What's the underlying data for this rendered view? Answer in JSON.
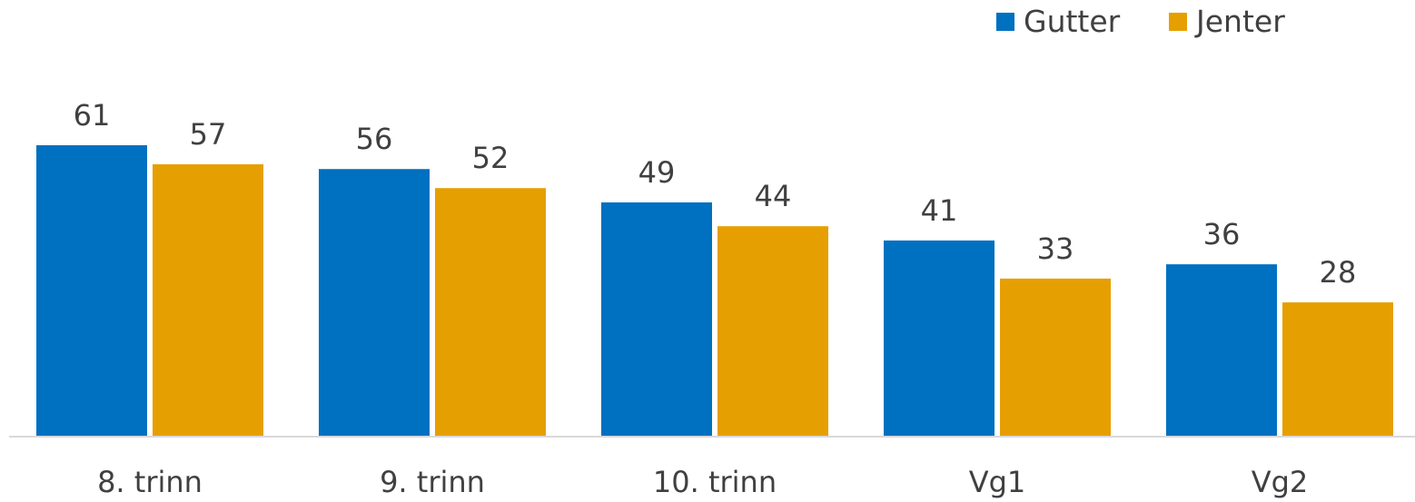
{
  "chart_data": {
    "type": "bar",
    "categories": [
      "8. trinn",
      "9. trinn",
      "10. trinn",
      "Vg1",
      "Vg2"
    ],
    "series": [
      {
        "name": "Gutter",
        "color": "#0070C0",
        "values": [
          61,
          56,
          49,
          41,
          36
        ]
      },
      {
        "name": "Jenter",
        "color": "#E69F00",
        "values": [
          57,
          52,
          44,
          33,
          28
        ]
      }
    ],
    "ylim": [
      0,
      61
    ],
    "grid": false,
    "legend": "top-right",
    "axis_line_color": "#D9D9D9"
  }
}
